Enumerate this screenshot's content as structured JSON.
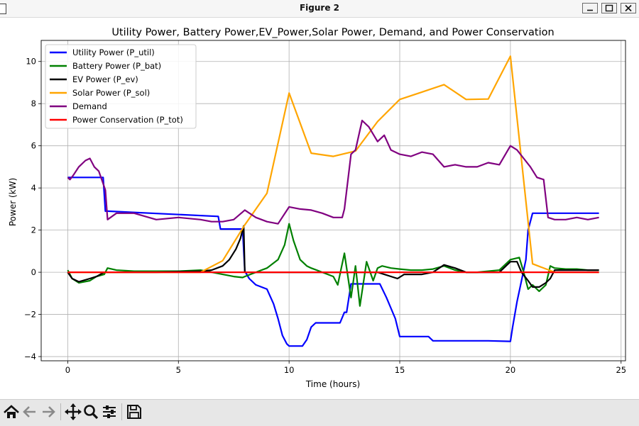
{
  "window": {
    "title": "Figure 2"
  },
  "toolbar": {
    "items": [
      {
        "icon": "home-icon"
      },
      {
        "icon": "back-arrow-icon"
      },
      {
        "icon": "forward-arrow-icon"
      },
      {
        "icon": "pan-icon"
      },
      {
        "icon": "zoom-icon"
      },
      {
        "icon": "subplots-config-icon"
      },
      {
        "icon": "save-icon"
      }
    ]
  },
  "chart_data": {
    "type": "line",
    "title": "Utility Power, Battery Power,EV_Power,Solar Power, Demand, and Power Conservation",
    "xlabel": "Time (hours)",
    "ylabel": "Power (kW)",
    "xlim": [
      -1.2,
      25.2
    ],
    "ylim": [
      -4.2,
      11.0
    ],
    "xticks": [
      0,
      5,
      10,
      15,
      20,
      25
    ],
    "yticks": [
      -4,
      -2,
      0,
      2,
      4,
      6,
      8,
      10
    ],
    "grid": true,
    "legend_position": "top-left",
    "series": [
      {
        "name": "Utility Power (P_util)",
        "color": "#0000ff",
        "x": [
          0,
          0.1,
          1.6,
          1.7,
          1.8,
          6.8,
          6.9,
          7.9,
          8.0,
          8.2,
          8.5,
          9.0,
          9.3,
          9.5,
          9.7,
          9.9,
          10.0,
          10.6,
          10.8,
          11.0,
          11.2,
          12.3,
          12.5,
          12.6,
          12.8,
          14.1,
          14.4,
          14.8,
          15.0,
          16.3,
          16.5,
          19.0,
          20.0,
          20.1,
          20.3,
          20.5,
          20.7,
          20.8,
          21.0,
          24.0
        ],
        "y": [
          4.5,
          4.5,
          4.5,
          2.9,
          2.9,
          2.65,
          2.05,
          2.05,
          0.05,
          -0.3,
          -0.6,
          -0.8,
          -1.5,
          -2.2,
          -3.0,
          -3.4,
          -3.5,
          -3.5,
          -3.2,
          -2.6,
          -2.4,
          -2.4,
          -1.9,
          -1.9,
          -0.55,
          -0.55,
          -1.2,
          -2.2,
          -3.05,
          -3.05,
          -3.25,
          -3.25,
          -3.28,
          -2.6,
          -1.4,
          -0.4,
          0.6,
          2.0,
          2.8,
          2.8
        ]
      },
      {
        "name": "Battery Power (P_bat)",
        "color": "#008000",
        "x": [
          0,
          0.2,
          0.5,
          1.0,
          1.3,
          1.65,
          1.8,
          2.2,
          3.0,
          4.0,
          5.0,
          6.0,
          6.5,
          7.0,
          7.5,
          7.9,
          8.0,
          8.5,
          9.0,
          9.5,
          9.8,
          10.0,
          10.2,
          10.5,
          10.8,
          11.0,
          11.5,
          12.0,
          12.2,
          12.5,
          12.8,
          13.0,
          13.2,
          13.5,
          13.8,
          14.0,
          14.2,
          14.6,
          15.0,
          15.5,
          16.0,
          16.5,
          17.0,
          17.5,
          18.0,
          18.5,
          19.0,
          19.5,
          20.0,
          20.4,
          20.6,
          20.8,
          21.0,
          21.3,
          21.6,
          21.8,
          22.0,
          22.5,
          23.0,
          23.5,
          24.0
        ],
        "y": [
          0.1,
          -0.3,
          -0.5,
          -0.4,
          -0.2,
          -0.1,
          0.2,
          0.1,
          0.05,
          0.05,
          0.05,
          0.1,
          0.0,
          -0.1,
          -0.2,
          -0.25,
          -0.2,
          0.0,
          0.2,
          0.6,
          1.3,
          2.3,
          1.5,
          0.6,
          0.3,
          0.2,
          0.0,
          -0.2,
          -0.6,
          0.9,
          -1.2,
          0.3,
          -1.6,
          0.5,
          -0.4,
          0.2,
          0.3,
          0.2,
          0.15,
          0.1,
          0.1,
          0.15,
          0.3,
          0.1,
          0.0,
          0.0,
          0.05,
          0.1,
          0.6,
          0.7,
          0.0,
          -0.8,
          -0.6,
          -0.9,
          -0.6,
          0.3,
          0.2,
          0.15,
          0.15,
          0.1,
          0.1
        ]
      },
      {
        "name": "EV Power (P_ev)",
        "color": "#000000",
        "x": [
          0,
          0.2,
          0.5,
          1.0,
          1.3,
          1.65,
          1.8,
          2.5,
          4.0,
          6.0,
          6.5,
          7.0,
          7.3,
          7.6,
          7.8,
          7.95,
          8.0,
          8.5,
          12.0,
          14.0,
          14.9,
          15.2,
          16.0,
          16.5,
          17.0,
          17.5,
          18.0,
          19.0,
          19.5,
          20.0,
          20.3,
          20.5,
          20.8,
          21.0,
          21.3,
          21.6,
          21.8,
          22.0,
          24.0
        ],
        "y": [
          0.0,
          -0.3,
          -0.45,
          -0.3,
          -0.2,
          0.0,
          0.0,
          0.0,
          0.0,
          0.05,
          0.1,
          0.3,
          0.6,
          1.1,
          1.6,
          2.2,
          0.0,
          0.0,
          0.0,
          0.0,
          -0.3,
          -0.1,
          -0.1,
          0.0,
          0.35,
          0.2,
          0.0,
          0.0,
          0.0,
          0.5,
          0.5,
          0.0,
          -0.4,
          -0.7,
          -0.7,
          -0.5,
          -0.3,
          0.1,
          0.1
        ]
      },
      {
        "name": "Solar Power (P_sol)",
        "color": "#ffa500",
        "x": [
          0,
          6.0,
          7.0,
          8.0,
          9.0,
          10.0,
          11.0,
          12.0,
          13.0,
          14.0,
          15.0,
          16.0,
          17.0,
          18.0,
          19.0,
          20.0,
          21.0,
          22.0,
          23.0,
          24.0
        ],
        "y": [
          0,
          0,
          0.55,
          2.25,
          3.75,
          8.5,
          5.65,
          5.5,
          5.75,
          7.15,
          8.2,
          8.55,
          8.9,
          8.2,
          8.22,
          10.25,
          0.4,
          0.0,
          0.0,
          0.0
        ]
      },
      {
        "name": "Demand",
        "color": "#800080",
        "x": [
          0,
          0.1,
          0.25,
          0.5,
          0.8,
          1.0,
          1.2,
          1.4,
          1.6,
          1.7,
          1.8,
          2.2,
          3.0,
          4.0,
          5.0,
          6.0,
          6.5,
          7.0,
          7.5,
          8.0,
          8.5,
          9.0,
          9.5,
          10.0,
          10.5,
          11.0,
          11.5,
          12.0,
          12.4,
          12.5,
          12.8,
          13.0,
          13.3,
          13.6,
          14.0,
          14.3,
          14.6,
          15.0,
          15.5,
          16.0,
          16.5,
          17.0,
          17.5,
          18.0,
          18.5,
          19.0,
          19.5,
          20.0,
          20.3,
          20.6,
          20.9,
          21.2,
          21.5,
          21.7,
          22.0,
          22.5,
          23.0,
          23.5,
          24.0
        ],
        "y": [
          4.5,
          4.4,
          4.6,
          5.0,
          5.3,
          5.4,
          5.0,
          4.8,
          4.2,
          3.9,
          2.5,
          2.8,
          2.8,
          2.5,
          2.6,
          2.5,
          2.4,
          2.4,
          2.5,
          2.95,
          2.6,
          2.4,
          2.3,
          3.1,
          3.0,
          2.95,
          2.8,
          2.6,
          2.6,
          3.0,
          5.6,
          5.8,
          7.2,
          6.9,
          6.2,
          6.5,
          5.8,
          5.6,
          5.5,
          5.7,
          5.6,
          5.0,
          5.1,
          5.0,
          5.0,
          5.2,
          5.1,
          6.0,
          5.8,
          5.4,
          5.0,
          4.5,
          4.4,
          2.6,
          2.5,
          2.5,
          2.6,
          2.5,
          2.6
        ]
      },
      {
        "name": "Power Conservation (P_tot)",
        "color": "#ff0000",
        "x": [
          0,
          24.0
        ],
        "y": [
          0,
          0
        ]
      }
    ]
  }
}
